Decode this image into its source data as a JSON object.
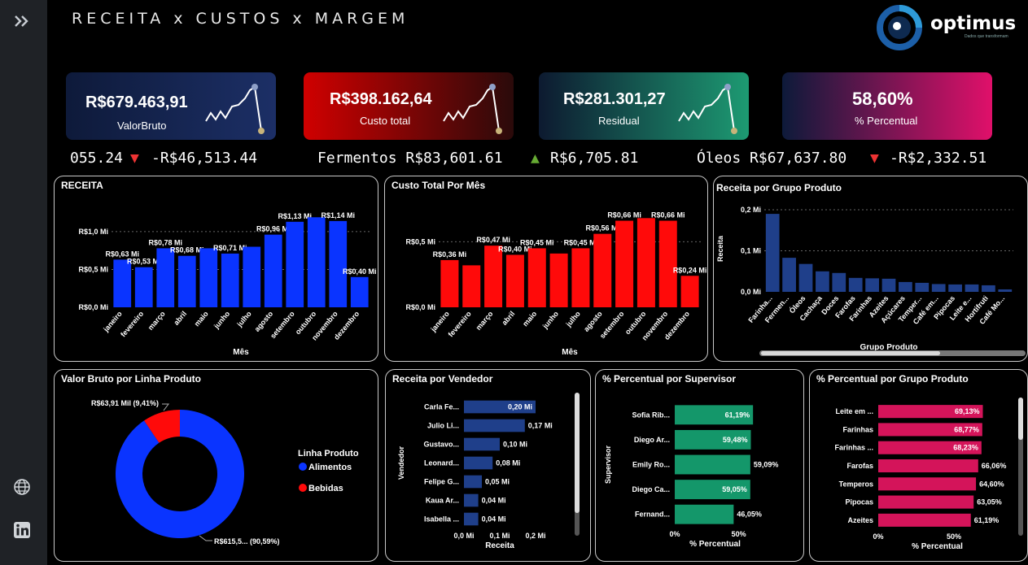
{
  "title": "RECEITA x CUSTOS x MARGEM",
  "logo": {
    "name": "optimus",
    "tagline": "Dados que transformam"
  },
  "sidebar": {
    "expand_icon": "chevrons-right-icon",
    "globe_icon": "globe-icon",
    "linkedin_icon": "linkedin-icon"
  },
  "kpis": [
    {
      "value": "R$679.463,91",
      "label": "ValorBruto",
      "colors": [
        "#0e1a3a",
        "#1c2f66"
      ]
    },
    {
      "value": "R$398.162,64",
      "label": "Custo total",
      "colors": [
        "#d00000",
        "#2a0a0a"
      ]
    },
    {
      "value": "R$281.301,27",
      "label": "Residual",
      "colors": [
        "#0d1a30",
        "#1d9a72"
      ]
    },
    {
      "value": "58,60%",
      "label": "% Percentual",
      "colors": [
        "#0d1a3a",
        "#e0106a"
      ]
    }
  ],
  "ticker": [
    {
      "text": "055.24",
      "arrow": "",
      "delta": ""
    },
    {
      "text": "",
      "arrow": "▼",
      "delta": "-R$46,513.44"
    },
    {
      "text": "Fermentos R$83,601.61",
      "arrow": "▲",
      "delta": "R$6,705.81"
    },
    {
      "text": "Óleos R$67,637.80",
      "arrow": "▼",
      "delta": "-R$2,332.51"
    }
  ],
  "colors": {
    "receita": "#0a34ff",
    "custo": "#ff0a0a",
    "grupo": "#1f3f8a",
    "vendedor": "#1f3f8a",
    "supervisor": "#14976a",
    "pctgrupo": "#d4145a",
    "alimentos": "#0a34ff",
    "bebidas": "#ff0a0a"
  },
  "chart_data": [
    {
      "id": "receita",
      "type": "bar",
      "title": "RECEITA",
      "xlabel": "Mês",
      "ylabel": "",
      "categories": [
        "janeiro",
        "fevereiro",
        "março",
        "abril",
        "maio",
        "junho",
        "julho",
        "agosto",
        "setembro",
        "outubro",
        "novembro",
        "dezembro"
      ],
      "values": [
        0.63,
        0.53,
        0.78,
        0.68,
        0.78,
        0.71,
        0.8,
        0.96,
        1.13,
        1.19,
        1.14,
        0.4
      ],
      "labels": [
        "R$0,63 Mi",
        "R$0,53 Mi",
        "R$0,78 Mi",
        "R$0,68 Mi",
        "",
        "R$0,71 Mi",
        "",
        "R$0,96 Mi",
        "R$1,13 Mi",
        "",
        "R$1,14 Mi",
        "R$0,40 Mi"
      ],
      "ylim": [
        0,
        1.3
      ],
      "yticks": [
        {
          "v": 0,
          "t": "R$0,0 Mi"
        },
        {
          "v": 0.5,
          "t": "R$0,5 Mi"
        },
        {
          "v": 1.0,
          "t": "R$1,0 Mi"
        }
      ]
    },
    {
      "id": "custo",
      "type": "bar",
      "title": "Custo Total Por Mês",
      "xlabel": "Mês",
      "ylabel": "",
      "categories": [
        "janeiro",
        "fevereiro",
        "março",
        "abril",
        "maio",
        "junho",
        "julho",
        "agosto",
        "setembro",
        "outubro",
        "novembro",
        "dezembro"
      ],
      "values": [
        0.36,
        0.32,
        0.47,
        0.4,
        0.45,
        0.41,
        0.45,
        0.56,
        0.66,
        0.68,
        0.66,
        0.24
      ],
      "labels": [
        "R$0,36 Mi",
        "",
        "R$0,47 Mi",
        "R$0,40 Mi",
        "R$0,45 Mi",
        "",
        "R$0,45 Mi",
        "R$0,56 Mi",
        "R$0,66 Mi",
        "",
        "R$0,66 Mi",
        "R$0,24 Mi"
      ],
      "ylim": [
        0,
        0.75
      ],
      "yticks": [
        {
          "v": 0,
          "t": "R$0,0 Mi"
        },
        {
          "v": 0.5,
          "t": "R$0,5 Mi"
        }
      ]
    },
    {
      "id": "grupo",
      "type": "bar",
      "title": "Receita por Grupo Produto",
      "xlabel": "Grupo Produto",
      "ylabel": "Receita",
      "categories": [
        "Farinha...",
        "Fermen...",
        "Óleos",
        "Cachaça",
        "Doces",
        "Farofas",
        "Farinhas",
        "Azeites",
        "Açúcares",
        "Temper...",
        "Café em...",
        "Pipocas",
        "Leite e...",
        "Hortifruti",
        "Café Mo..."
      ],
      "values": [
        0.19,
        0.083,
        0.068,
        0.05,
        0.046,
        0.034,
        0.033,
        0.032,
        0.024,
        0.022,
        0.019,
        0.018,
        0.018,
        0.016,
        0.006
      ],
      "ylim": [
        0,
        0.21
      ],
      "yticks": [
        {
          "v": 0,
          "t": "0,0 Mi"
        },
        {
          "v": 0.1,
          "t": "0,1 Mi"
        },
        {
          "v": 0.2,
          "t": "0,2 Mi"
        }
      ]
    },
    {
      "id": "linha",
      "type": "pie",
      "title": "Valor Bruto por Linha Produto",
      "legend_title": "Linha Produto",
      "slices": [
        {
          "name": "Alimentos",
          "value": 90.59,
          "label": "R$615,5... (90,59%)"
        },
        {
          "name": "Bebidas",
          "value": 9.41,
          "label": "R$63,91 Mil (9,41%)"
        }
      ]
    },
    {
      "id": "vendedor",
      "type": "bar",
      "orientation": "horizontal",
      "title": "Receita por Vendedor",
      "xlabel": "Receita",
      "ylabel": "Vendedor",
      "categories": [
        "Carla Fe...",
        "Julio Li...",
        "Gustavo...",
        "Leonard...",
        "Felipe G...",
        "Kaua Ar...",
        "Isabella ..."
      ],
      "values": [
        0.2,
        0.17,
        0.1,
        0.08,
        0.05,
        0.04,
        0.04
      ],
      "labels": [
        "0,20 Mi",
        "0,17 Mi",
        "0,10 Mi",
        "0,08 Mi",
        "0,05 Mi",
        "0,04 Mi",
        "0,04 Mi"
      ],
      "xlim": [
        0,
        0.2
      ],
      "xticks": [
        {
          "v": 0,
          "t": "0,0 Mi"
        },
        {
          "v": 0.1,
          "t": "0,1 Mi"
        },
        {
          "v": 0.2,
          "t": "0,2 Mi"
        }
      ]
    },
    {
      "id": "supervisor",
      "type": "bar",
      "orientation": "horizontal",
      "title": "% Percentual por Supervisor",
      "xlabel": "% Percentual",
      "ylabel": "Supervisor",
      "categories": [
        "Sofia Rib...",
        "Diego Ar...",
        "Emily Ro...",
        "Diego Ca...",
        "Fernand..."
      ],
      "values": [
        61.19,
        59.48,
        59.09,
        59.05,
        46.05
      ],
      "labels": [
        "61,19%",
        "59,48%",
        "59,09%",
        "59,05%",
        "46,05%"
      ],
      "xlim": [
        0,
        63
      ],
      "xticks": [
        {
          "v": 0,
          "t": "0%"
        },
        {
          "v": 50,
          "t": "50%"
        }
      ]
    },
    {
      "id": "pctgrupo",
      "type": "bar",
      "orientation": "horizontal",
      "title": "% Percentual por Grupo Produto",
      "xlabel": "% Percentual",
      "ylabel": "",
      "categories": [
        "Leite em ...",
        "Farinhas",
        "Farinhas ...",
        "Farofas",
        "Temperos",
        "Pipocas",
        "Azeites"
      ],
      "values": [
        69.13,
        68.77,
        68.23,
        66.06,
        64.6,
        63.05,
        61.19
      ],
      "labels": [
        "69,13%",
        "68,77%",
        "68,23%",
        "66,06%",
        "64,60%",
        "63,05%",
        "61,19%"
      ],
      "xlim": [
        0,
        78
      ],
      "xticks": [
        {
          "v": 0,
          "t": "0%"
        },
        {
          "v": 50,
          "t": "50%"
        }
      ]
    }
  ]
}
